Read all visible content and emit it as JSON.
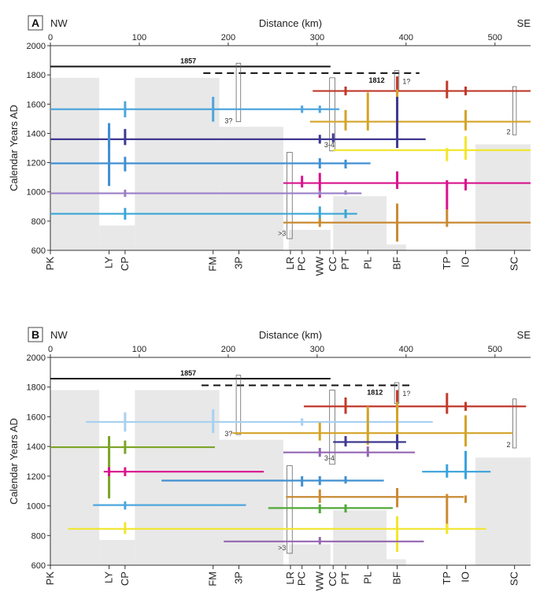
{
  "chart_data": [
    {
      "panel_label": "A",
      "type": "timeline",
      "title": "Distance (km)",
      "direction_left": "NW",
      "direction_right": "SE",
      "ylabel": "Calendar Years AD",
      "xlim": [
        0,
        540
      ],
      "ylim": [
        600,
        2000
      ],
      "x_ticks": [
        0,
        100,
        200,
        300,
        400,
        500
      ],
      "y_ticks": [
        600,
        800,
        1000,
        1200,
        1400,
        1600,
        1800,
        2000
      ],
      "sites": [
        {
          "name": "PK",
          "km": 0
        },
        {
          "name": "LY",
          "km": 66
        },
        {
          "name": "CP",
          "km": 84
        },
        {
          "name": "FM",
          "km": 183
        },
        {
          "name": "3P",
          "km": 212
        },
        {
          "name": "LR",
          "km": 270
        },
        {
          "name": "PC",
          "km": 283
        },
        {
          "name": "WW",
          "km": 303
        },
        {
          "name": "CC",
          "km": 318
        },
        {
          "name": "PT",
          "km": 332
        },
        {
          "name": "PL",
          "km": 357
        },
        {
          "name": "BF",
          "km": 390
        },
        {
          "name": "TP",
          "km": 446
        },
        {
          "name": "IO",
          "km": 467
        },
        {
          "name": "SC",
          "km": 522
        }
      ],
      "gaps": [
        {
          "x0": 0,
          "x1": 55,
          "y0": 600,
          "y1": 1780
        },
        {
          "x0": 55,
          "x1": 95,
          "y0": 600,
          "y1": 770
        },
        {
          "x0": 95,
          "x1": 190,
          "y0": 600,
          "y1": 1780
        },
        {
          "x0": 190,
          "x1": 262,
          "y0": 600,
          "y1": 1445
        },
        {
          "x0": 268,
          "x1": 315,
          "y0": 600,
          "y1": 740
        },
        {
          "x0": 318,
          "x1": 378,
          "y0": 600,
          "y1": 970
        },
        {
          "x0": 378,
          "x1": 400,
          "y0": 600,
          "y1": 640
        },
        {
          "x0": 478,
          "x1": 540,
          "y0": 600,
          "y1": 1325
        }
      ],
      "historical": [
        {
          "label": "1857",
          "y": 1857,
          "x0": 0,
          "x1": 315,
          "style": "solid"
        },
        {
          "label": "1812",
          "y": 1812,
          "x0": 172,
          "x1": 415,
          "style": "dashed"
        }
      ],
      "events": [
        {
          "color": "#c0392b",
          "y": 1690,
          "x0": 295,
          "x1": 540,
          "marks": [
            [
              332,
              1660,
              1720
            ],
            [
              390,
              1650,
              1790
            ],
            [
              446,
              1640,
              1760
            ],
            [
              467,
              1660,
              1720
            ]
          ]
        },
        {
          "color": "#4ea6dd",
          "y": 1565,
          "x0": 0,
          "x1": 325,
          "marks": [
            [
              84,
              1510,
              1620
            ],
            [
              183,
              1480,
              1650
            ],
            [
              283,
              1540,
              1590
            ],
            [
              303,
              1540,
              1590
            ]
          ]
        },
        {
          "color": "#d4a327",
          "y": 1480,
          "x0": 292,
          "x1": 540,
          "marks": [
            [
              332,
              1420,
              1560
            ],
            [
              357,
              1420,
              1680
            ],
            [
              390,
              1410,
              1700
            ],
            [
              467,
              1420,
              1560
            ]
          ]
        },
        {
          "color": "#3f3991",
          "y": 1360,
          "x0": 0,
          "x1": 422,
          "marks": [
            [
              66,
              1300,
              1440
            ],
            [
              84,
              1320,
              1430
            ],
            [
              303,
              1330,
              1390
            ],
            [
              318,
              1340,
              1400
            ],
            [
              390,
              1300,
              1650
            ]
          ]
        },
        {
          "color": "#f2e62c",
          "y": 1285,
          "x0": 318,
          "x1": 540,
          "marks": [
            [
              446,
              1210,
              1300
            ],
            [
              467,
              1220,
              1380
            ]
          ]
        },
        {
          "color": "#3f8fd2",
          "y": 1195,
          "x0": 0,
          "x1": 360,
          "marks": [
            [
              66,
              1040,
              1470
            ],
            [
              84,
              1140,
              1240
            ],
            [
              303,
              1160,
              1230
            ],
            [
              332,
              1160,
              1220
            ]
          ]
        },
        {
          "color": "#d8138d",
          "y": 1060,
          "x0": 262,
          "x1": 540,
          "marks": [
            [
              283,
              1030,
              1110
            ],
            [
              303,
              960,
              1130
            ],
            [
              390,
              1020,
              1140
            ],
            [
              446,
              880,
              1080
            ],
            [
              467,
              1010,
              1090
            ]
          ]
        },
        {
          "color": "#9a7fc6",
          "y": 990,
          "x0": 0,
          "x1": 350,
          "marks": [
            [
              84,
              965,
              1015
            ],
            [
              303,
              975,
              1010
            ],
            [
              332,
              980,
              1010
            ]
          ]
        },
        {
          "color": "#3aa6d6",
          "y": 850,
          "x0": 0,
          "x1": 345,
          "marks": [
            [
              84,
              810,
              890
            ],
            [
              303,
              790,
              900
            ],
            [
              332,
              820,
              880
            ]
          ]
        },
        {
          "color": "#c98a33",
          "y": 790,
          "x0": 262,
          "x1": 540,
          "marks": [
            [
              303,
              760,
              820
            ],
            [
              390,
              660,
              920
            ],
            [
              446,
              760,
              880
            ]
          ]
        }
      ],
      "boxes": [
        {
          "x0": 209,
          "x1": 214,
          "y0": 1480,
          "y1": 1880,
          "label": "3?",
          "lx": 196,
          "ly": 1470
        },
        {
          "x0": 314,
          "x1": 320,
          "y0": 1280,
          "y1": 1780,
          "label": "3-4",
          "lx": 308,
          "ly": 1305
        },
        {
          "x0": 266,
          "x1": 272,
          "y0": 680,
          "y1": 1270,
          "label": ">3",
          "lx": 256,
          "ly": 700
        },
        {
          "x0": 520,
          "x1": 524,
          "y0": 1390,
          "y1": 1720,
          "label": "2",
          "lx": 513,
          "ly": 1395
        },
        {
          "x0": 387,
          "x1": 392,
          "y0": 1690,
          "y1": 1830,
          "label": "1?",
          "lx": 396,
          "ly": 1740
        }
      ]
    },
    {
      "panel_label": "B",
      "type": "timeline",
      "title": "Distance (km)",
      "direction_left": "NW",
      "direction_right": "SE",
      "ylabel": "Calendar Years AD",
      "xlim": [
        0,
        540
      ],
      "ylim": [
        600,
        2000
      ],
      "x_ticks": [
        0,
        100,
        200,
        300,
        400,
        500
      ],
      "y_ticks": [
        600,
        800,
        1000,
        1200,
        1400,
        1600,
        1800,
        2000
      ],
      "sites": [
        {
          "name": "PK",
          "km": 0
        },
        {
          "name": "LY",
          "km": 66
        },
        {
          "name": "CP",
          "km": 84
        },
        {
          "name": "FM",
          "km": 183
        },
        {
          "name": "3P",
          "km": 212
        },
        {
          "name": "LR",
          "km": 270
        },
        {
          "name": "PC",
          "km": 283
        },
        {
          "name": "WW",
          "km": 303
        },
        {
          "name": "CC",
          "km": 318
        },
        {
          "name": "PT",
          "km": 332
        },
        {
          "name": "PL",
          "km": 357
        },
        {
          "name": "BF",
          "km": 390
        },
        {
          "name": "TP",
          "km": 446
        },
        {
          "name": "IO",
          "km": 467
        },
        {
          "name": "SC",
          "km": 522
        }
      ],
      "gaps": [
        {
          "x0": 0,
          "x1": 55,
          "y0": 600,
          "y1": 1780
        },
        {
          "x0": 55,
          "x1": 95,
          "y0": 600,
          "y1": 770
        },
        {
          "x0": 95,
          "x1": 190,
          "y0": 600,
          "y1": 1780
        },
        {
          "x0": 190,
          "x1": 262,
          "y0": 600,
          "y1": 1445
        },
        {
          "x0": 268,
          "x1": 315,
          "y0": 600,
          "y1": 740
        },
        {
          "x0": 318,
          "x1": 378,
          "y0": 600,
          "y1": 970
        },
        {
          "x0": 378,
          "x1": 400,
          "y0": 600,
          "y1": 640
        },
        {
          "x0": 478,
          "x1": 540,
          "y0": 600,
          "y1": 1325
        }
      ],
      "historical": [
        {
          "label": "1857",
          "y": 1857,
          "x0": 0,
          "x1": 315,
          "style": "solid"
        },
        {
          "label": "1812",
          "y": 1812,
          "x0": 170,
          "x1": 405,
          "style": "dashed"
        }
      ],
      "events": [
        {
          "color": "#c0392b",
          "y": 1670,
          "x0": 285,
          "x1": 535,
          "marks": [
            [
              332,
              1620,
              1730
            ],
            [
              390,
              1630,
              1780
            ],
            [
              446,
              1620,
              1760
            ],
            [
              467,
              1640,
              1700
            ]
          ]
        },
        {
          "color": "#a8d1f0",
          "y": 1565,
          "x0": 40,
          "x1": 430,
          "marks": [
            [
              84,
              1500,
              1630
            ],
            [
              183,
              1490,
              1650
            ],
            [
              283,
              1540,
              1590
            ],
            [
              357,
              1480,
              1640
            ]
          ]
        },
        {
          "color": "#d4a327",
          "y": 1490,
          "x0": 205,
          "x1": 520,
          "marks": [
            [
              303,
              1440,
              1560
            ],
            [
              357,
              1410,
              1670
            ],
            [
              390,
              1400,
              1700
            ],
            [
              467,
              1400,
              1610
            ]
          ]
        },
        {
          "color": "#3f3991",
          "y": 1430,
          "x0": 318,
          "x1": 400,
          "marks": [
            [
              332,
              1400,
              1470
            ],
            [
              390,
              1380,
              1480
            ]
          ]
        },
        {
          "color": "#7ba428",
          "y": 1395,
          "x0": 0,
          "x1": 185,
          "marks": [
            [
              66,
              1050,
              1470
            ],
            [
              84,
              1350,
              1440
            ]
          ]
        },
        {
          "color": "#9466b2",
          "y": 1360,
          "x0": 262,
          "x1": 410,
          "marks": [
            [
              303,
              1330,
              1390
            ],
            [
              357,
              1330,
              1400
            ]
          ]
        },
        {
          "color": "#d8138d",
          "y": 1230,
          "x0": 60,
          "x1": 240,
          "marks": [
            [
              66,
              1200,
              1260
            ],
            [
              84,
              1200,
              1260
            ]
          ]
        },
        {
          "color": "#3aa2dc",
          "y": 1230,
          "x0": 418,
          "x1": 495,
          "marks": [
            [
              446,
              1190,
              1280
            ],
            [
              467,
              1180,
              1370
            ]
          ]
        },
        {
          "color": "#3f8fd2",
          "y": 1170,
          "x0": 125,
          "x1": 375,
          "marks": [
            [
              283,
              1130,
              1200
            ],
            [
              303,
              1140,
              1200
            ],
            [
              332,
              1150,
              1200
            ]
          ]
        },
        {
          "color": "#c98a33",
          "y": 1060,
          "x0": 265,
          "x1": 465,
          "marks": [
            [
              303,
              1020,
              1110
            ],
            [
              390,
              990,
              1120
            ],
            [
              446,
              850,
              1080
            ],
            [
              467,
              1020,
              1070
            ]
          ]
        },
        {
          "color": "#4ea6dd",
          "y": 1005,
          "x0": 48,
          "x1": 220,
          "marks": [
            [
              84,
              975,
              1030
            ]
          ]
        },
        {
          "color": "#52a838",
          "y": 985,
          "x0": 245,
          "x1": 385,
          "marks": [
            [
              303,
              950,
              1010
            ],
            [
              332,
              955,
              1010
            ]
          ]
        },
        {
          "color": "#f2e62c",
          "y": 845,
          "x0": 20,
          "x1": 490,
          "marks": [
            [
              84,
              810,
              890
            ],
            [
              390,
              690,
              930
            ],
            [
              446,
              810,
              880
            ]
          ]
        },
        {
          "color": "#9466b2",
          "y": 760,
          "x0": 195,
          "x1": 420,
          "marks": [
            [
              303,
              740,
              790
            ]
          ]
        }
      ],
      "boxes": [
        {
          "x0": 209,
          "x1": 214,
          "y0": 1480,
          "y1": 1880,
          "label": "3?",
          "lx": 196,
          "ly": 1470
        },
        {
          "x0": 314,
          "x1": 320,
          "y0": 1280,
          "y1": 1780,
          "label": "3-4",
          "lx": 308,
          "ly": 1305
        },
        {
          "x0": 266,
          "x1": 272,
          "y0": 680,
          "y1": 1270,
          "label": ">3",
          "lx": 256,
          "ly": 700
        },
        {
          "x0": 520,
          "x1": 524,
          "y0": 1390,
          "y1": 1720,
          "label": "2",
          "lx": 513,
          "ly": 1395
        },
        {
          "x0": 387,
          "x1": 392,
          "y0": 1690,
          "y1": 1830,
          "label": "1?",
          "lx": 396,
          "ly": 1740
        }
      ]
    }
  ]
}
